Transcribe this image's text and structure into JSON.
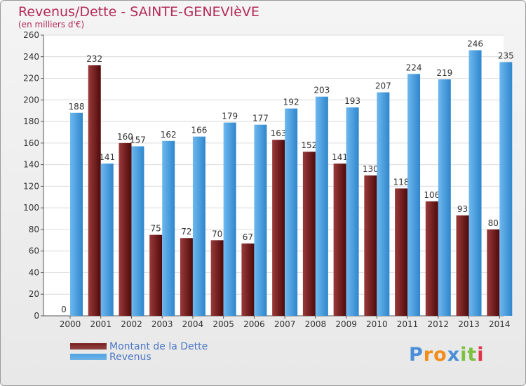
{
  "header": {
    "title": "Revenus/Dette - SAINTE-GENEVIèVE",
    "subtitle": "(en milliers d'€)"
  },
  "chart_data": {
    "type": "bar",
    "categories": [
      "2000",
      "2001",
      "2002",
      "2003",
      "2004",
      "2005",
      "2006",
      "2007",
      "2008",
      "2009",
      "2010",
      "2011",
      "2012",
      "2013",
      "2014"
    ],
    "series": [
      {
        "name": "Montant de la Dette",
        "values": [
          0,
          232,
          160,
          75,
          72,
          70,
          67,
          163,
          152,
          141,
          130,
          118,
          106,
          93,
          80
        ],
        "color": "#7a1f1f"
      },
      {
        "name": "Revenus",
        "values": [
          188,
          141,
          157,
          162,
          166,
          179,
          177,
          192,
          203,
          193,
          207,
          224,
          219,
          246,
          235
        ],
        "color": "#4fa3e3"
      }
    ],
    "ylim": [
      0,
      260
    ],
    "yticks": [
      0,
      20,
      40,
      60,
      80,
      100,
      120,
      140,
      160,
      180,
      200,
      220,
      240,
      260
    ],
    "grid": true,
    "legend": "bottom-left"
  },
  "legend": {
    "items": [
      {
        "label": "Montant de la Dette",
        "color": "#7a1f1f"
      },
      {
        "label": "Revenus",
        "color": "#4fa3e3"
      }
    ]
  },
  "logo": {
    "letters": [
      "P",
      "r",
      "o",
      "x",
      "i",
      "t",
      "i"
    ],
    "colors": [
      "#4a8fd8",
      "#f28c1a",
      "#f28c1a",
      "#4a8fd8",
      "#7cc142",
      "#7cc142",
      "#e0344a"
    ]
  }
}
